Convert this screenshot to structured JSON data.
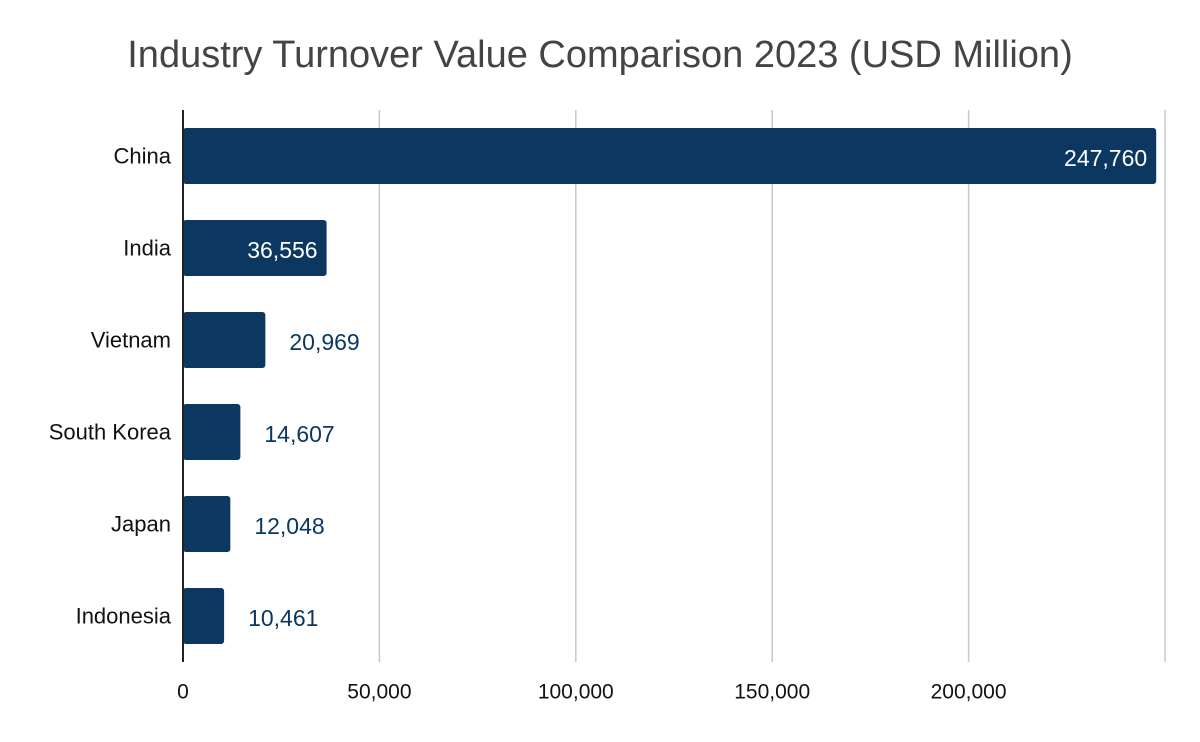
{
  "chart_data": {
    "type": "bar",
    "orientation": "horizontal",
    "title": "Industry Turnover Value Comparison 2023 (USD Million)",
    "xlabel": "",
    "ylabel": "",
    "categories": [
      "China",
      "India",
      "Vietnam",
      "South Korea",
      "Japan",
      "Indonesia"
    ],
    "values": [
      247760,
      36556,
      20969,
      14607,
      12048,
      10461
    ],
    "data_labels": [
      "247,760",
      "36,556",
      "20,969",
      "14,607",
      "12,048",
      "10,461"
    ],
    "xlim": [
      0,
      250000
    ],
    "x_ticks": [
      0,
      50000,
      100000,
      150000,
      200000
    ],
    "x_tick_labels": [
      "0",
      "50,000",
      "100,000",
      "150,000",
      "200,000"
    ],
    "grid": "vertical",
    "legend": "none",
    "colors": {
      "bar": "#0b3761",
      "label_inside": "#ffffff",
      "label_outside": "#0b3761",
      "grid": "#c8c8c8",
      "axis": "#222222",
      "title": "#444444",
      "tick_text": "#111111"
    }
  }
}
